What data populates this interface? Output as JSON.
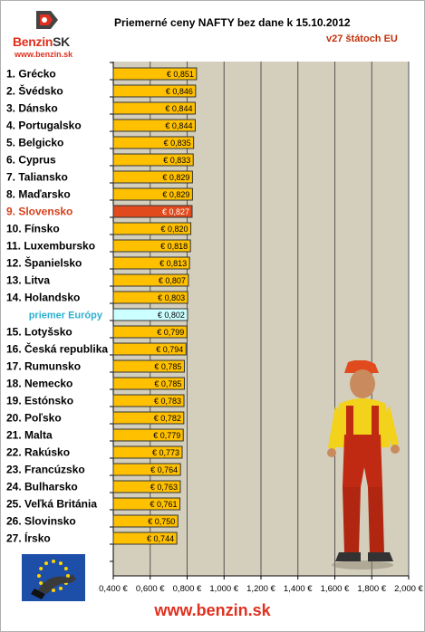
{
  "logo": {
    "brand": "Benzin",
    "brand_suffix": "SK",
    "url": "www.benzin.sk"
  },
  "footer": {
    "url": "www.benzin.sk"
  },
  "chart_data": {
    "type": "bar",
    "orientation": "horizontal",
    "title": "Priemerné ceny NAFTY bez dane k 15.10.2012",
    "subtitle": "v27 štátoch EU",
    "categories": [
      "1. Grécko",
      "2. Švédsko",
      "3. Dánsko",
      "4. Portugalsko",
      "5. Belgicko",
      "6. Cyprus",
      "7. Taliansko",
      "8. Maďarsko",
      "9. Slovensko",
      "10. Fínsko",
      "11. Luxembursko",
      "12. Španielsko",
      "13. Litva",
      "14. Holandsko",
      "priemer Európy",
      "15. Lotyšsko",
      "16. Česká republika",
      "17. Rumunsko",
      "18. Nemecko",
      "19. Estónsko",
      "20. Poľsko",
      "21. Malta",
      "22. Rakúsko",
      "23. Francúzsko",
      "24. Bulharsko",
      "25. Veľká Británia",
      "26. Slovinsko",
      "27. Írsko"
    ],
    "values": [
      0.851,
      0.846,
      0.844,
      0.844,
      0.835,
      0.833,
      0.829,
      0.829,
      0.827,
      0.82,
      0.818,
      0.813,
      0.807,
      0.803,
      0.802,
      0.799,
      0.794,
      0.785,
      0.785,
      0.783,
      0.782,
      0.779,
      0.773,
      0.764,
      0.763,
      0.761,
      0.75,
      0.744
    ],
    "data_labels": [
      "€ 0,851",
      "€ 0,846",
      "€ 0,844",
      "€ 0,844",
      "€ 0,835",
      "€ 0,833",
      "€ 0,829",
      "€ 0,829",
      "€ 0,827",
      "€ 0,820",
      "€ 0,818",
      "€ 0,813",
      "€ 0,807",
      "€ 0,803",
      "€ 0,802",
      "€ 0,799",
      "€ 0,794",
      "€ 0,785",
      "€ 0,785",
      "€ 0,783",
      "€ 0,782",
      "€ 0,779",
      "€ 0,773",
      "€ 0,764",
      "€ 0,763",
      "€ 0,761",
      "€ 0,750",
      "€ 0,744"
    ],
    "highlight_index": 8,
    "average_index": 14,
    "xlim": [
      0.4,
      2.0
    ],
    "xticks": [
      0.4,
      0.6,
      0.8,
      1.0,
      1.2,
      1.4,
      1.6,
      1.8,
      2.0
    ],
    "xtick_labels": [
      "0,400 €",
      "0,600 €",
      "0,800 €",
      "1,000 €",
      "1,200 €",
      "1,400 €",
      "1,600 €",
      "1,800 €",
      "2,000 €"
    ],
    "grid": true,
    "colors": {
      "bar": "#ffc000",
      "highlight_bar": "#e04a1c",
      "average_bar": "#ccffff",
      "plot_bg": "#d4cfbd",
      "grid": "#555555",
      "label_highlight": "#d6401a",
      "label_average": "#2ab0d0"
    }
  }
}
